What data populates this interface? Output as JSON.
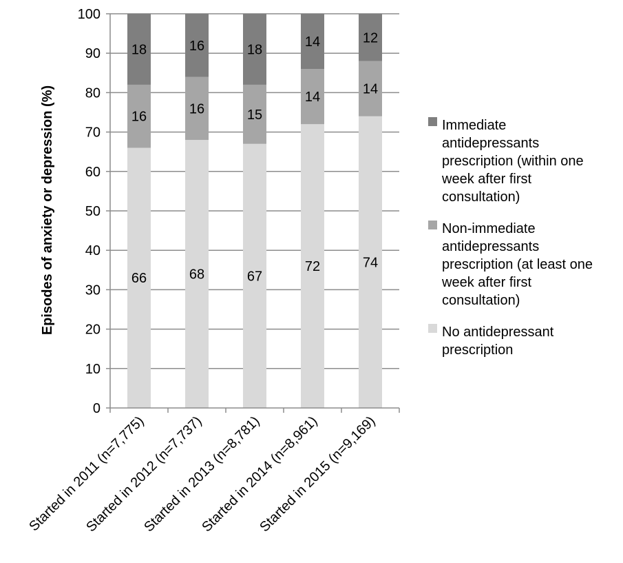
{
  "chart_data": {
    "type": "bar",
    "stacked": true,
    "title": "",
    "xlabel": "",
    "ylabel": "Episodes of anxiety or depression (%)",
    "ylim": [
      0,
      100
    ],
    "yticks": [
      0,
      10,
      20,
      30,
      40,
      50,
      60,
      70,
      80,
      90,
      100
    ],
    "grid": "horizontal",
    "legend_position": "right",
    "categories": [
      "Started in 2011 (n=7,775)",
      "Started in 2012 (n=7,737)",
      "Started in 2013 (n=8,781)",
      "Started in 2014 (n=8,961)",
      "Started in 2015 (n=9,169)"
    ],
    "series": [
      {
        "name": "No antidepressant prescription",
        "values": [
          66,
          68,
          67,
          72,
          74
        ],
        "color": "#d9d9d9"
      },
      {
        "name": "Non-immediate antidepressants prescription (at least one week after first consultation)",
        "values": [
          16,
          16,
          15,
          14,
          14
        ],
        "color": "#a6a6a6"
      },
      {
        "name": "Immediate antidepressants prescription (within one week after first consultation)",
        "values": [
          18,
          16,
          18,
          14,
          12
        ],
        "color": "#7f7f7f"
      }
    ],
    "legend": {
      "entries": [
        {
          "series_index": 2,
          "lines": [
            "Immediate",
            "antidepressants",
            "prescription (within one",
            "week after first",
            "consultation)"
          ]
        },
        {
          "series_index": 1,
          "lines": [
            "Non-immediate",
            "antidepressants",
            "prescription (at least one",
            "week after first",
            "consultation)"
          ]
        },
        {
          "series_index": 0,
          "lines": [
            "No antidepressant",
            "prescription"
          ]
        }
      ]
    }
  },
  "colors": {
    "gridline": "#8c8c8c",
    "axis": "#8c8c8c"
  }
}
